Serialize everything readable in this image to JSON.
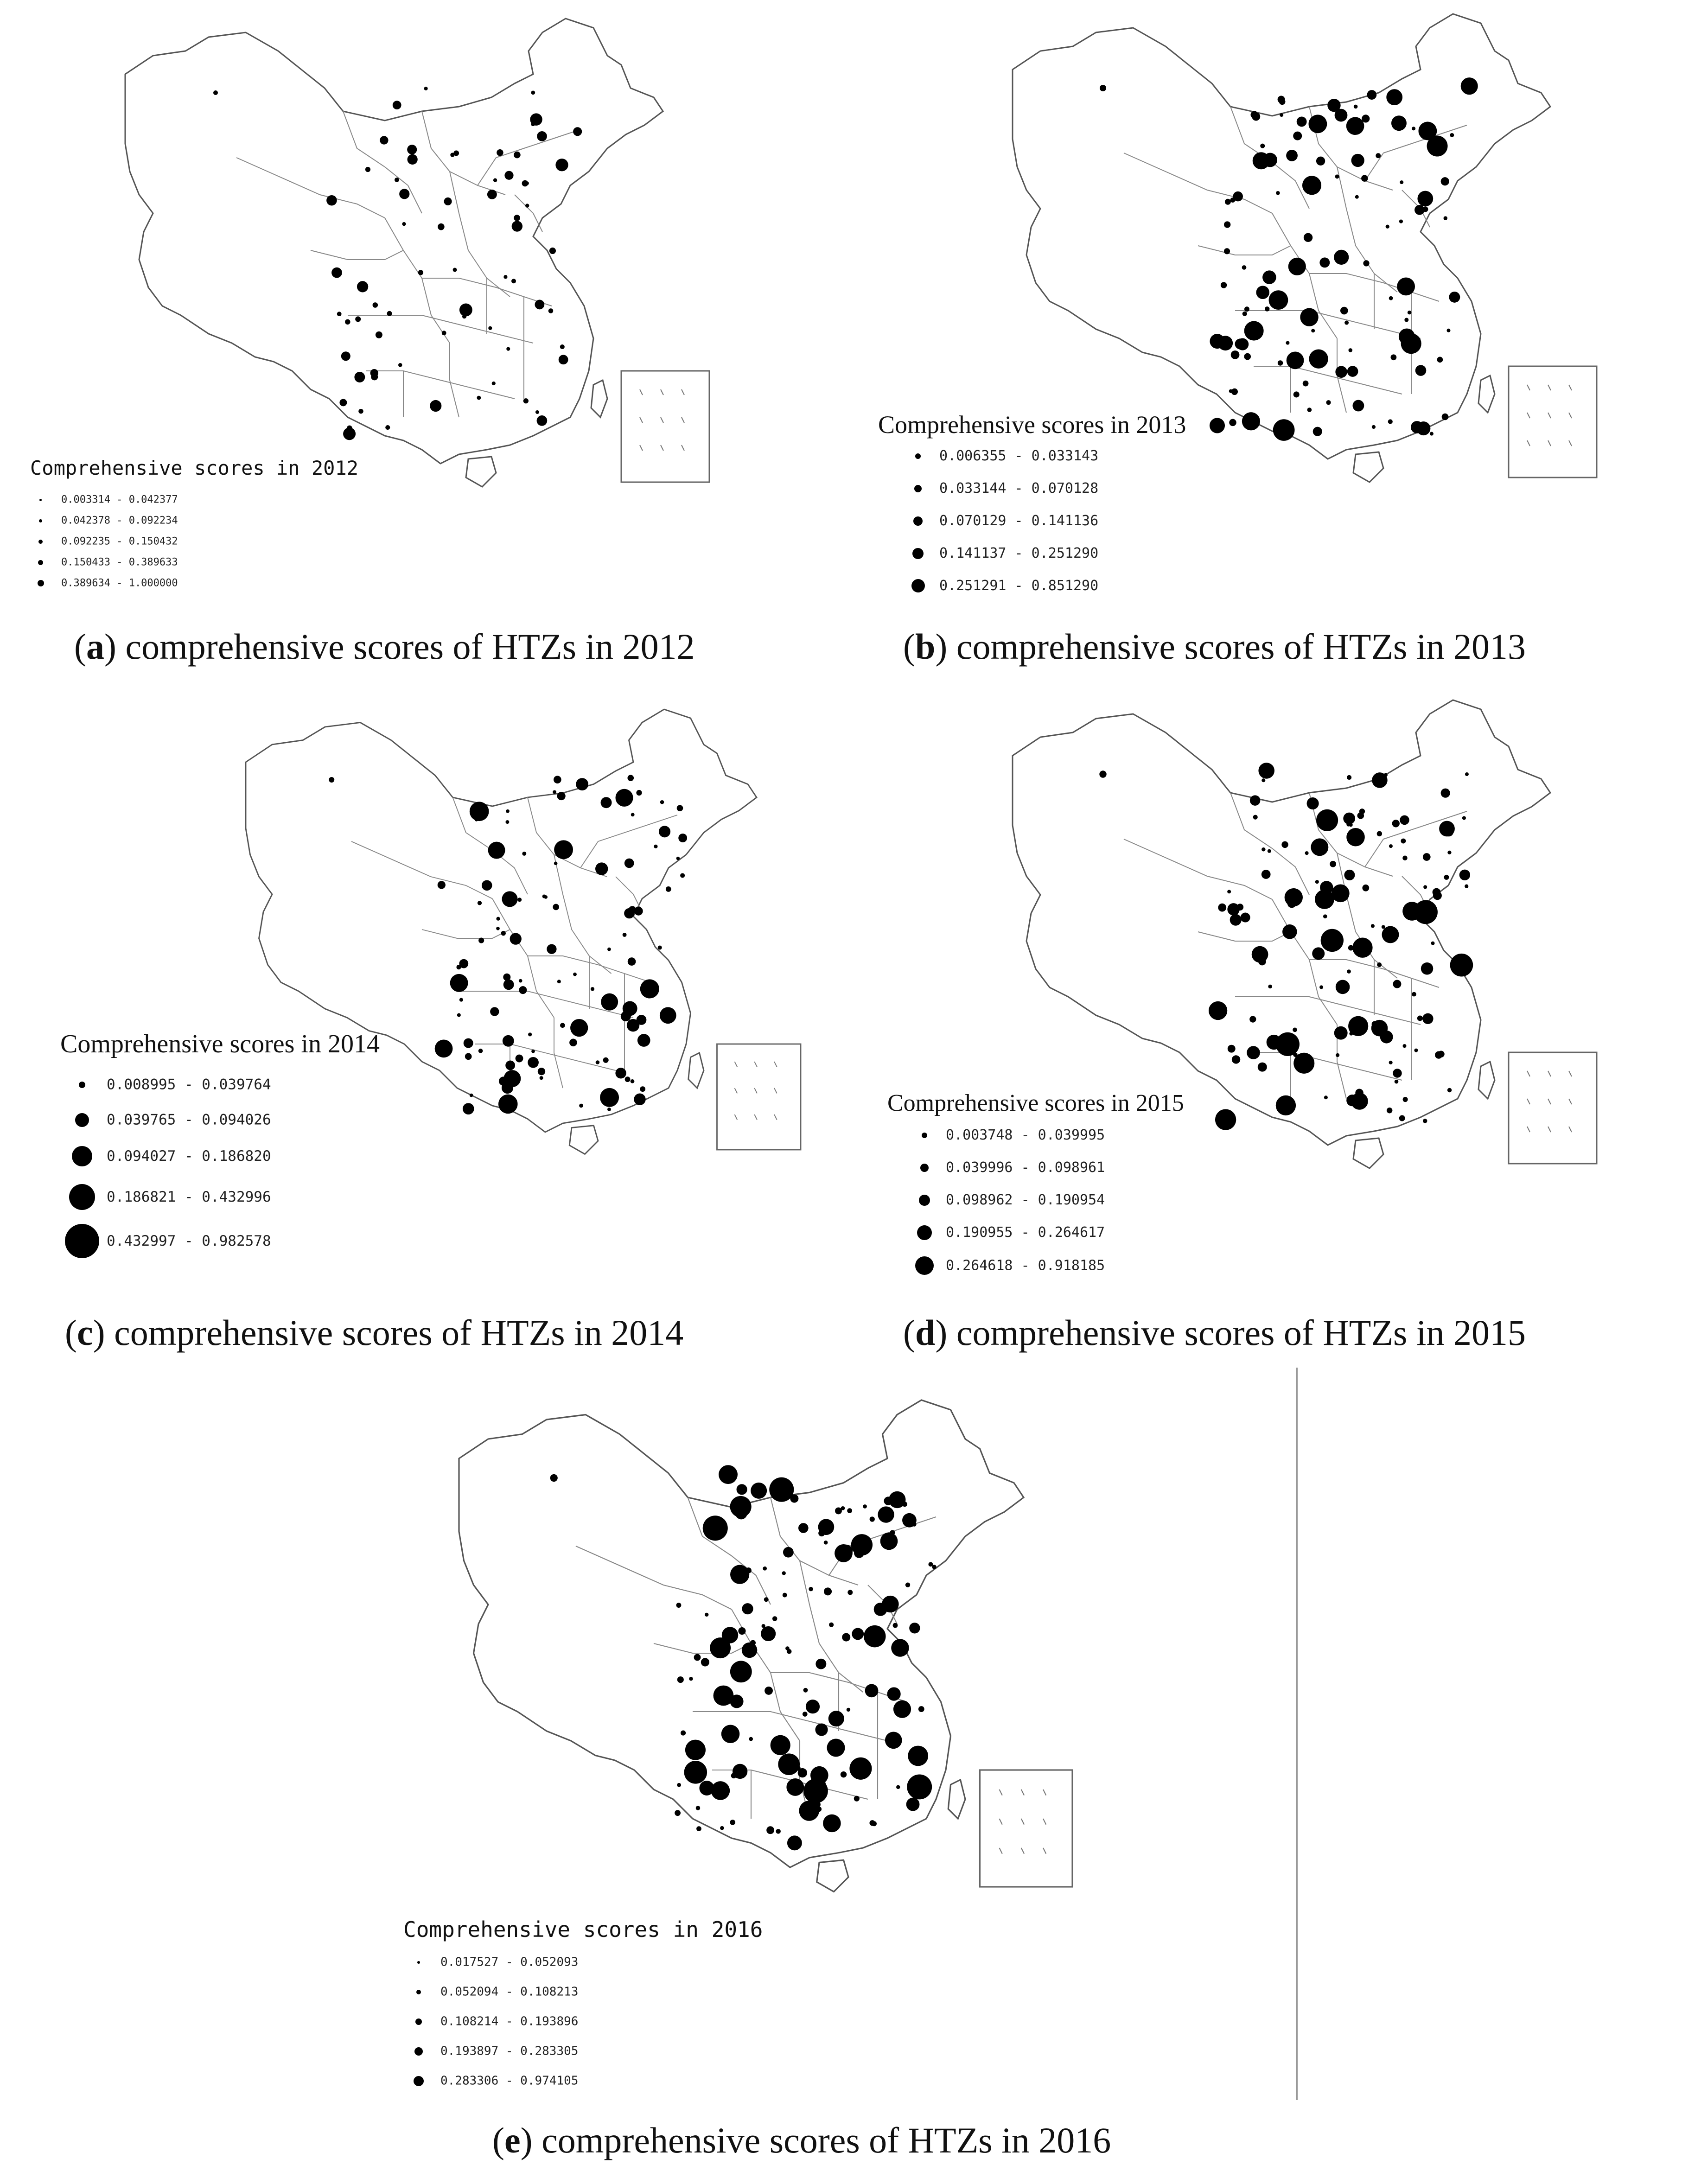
{
  "panels": [
    {
      "id": "a",
      "legend_title": "Comprehensive scores in 2012",
      "legend": [
        "0.003314 - 0.042377",
        "0.042378 - 0.092234",
        "0.092235 - 0.150432",
        "0.150433 - 0.389633",
        "0.389634 - 1.000000"
      ],
      "caption_letter": "a",
      "caption_text": "comprehensive scores of HTZs in 2012"
    },
    {
      "id": "b",
      "legend_title": "Comprehensive scores in 2013",
      "legend": [
        "0.006355 - 0.033143",
        "0.033144 - 0.070128",
        "0.070129 - 0.141136",
        "0.141137 - 0.251290",
        "0.251291 - 0.851290"
      ],
      "caption_letter": "b",
      "caption_text": "comprehensive scores of HTZs in 2013"
    },
    {
      "id": "c",
      "legend_title": "Comprehensive scores in 2014",
      "legend": [
        "0.008995 - 0.039764",
        "0.039765 - 0.094026",
        "0.094027 - 0.186820",
        "0.186821 - 0.432996",
        "0.432997 - 0.982578"
      ],
      "caption_letter": "c",
      "caption_text": "comprehensive scores of HTZs in 2014"
    },
    {
      "id": "d",
      "legend_title": "Comprehensive scores in 2015",
      "legend": [
        "0.003748 - 0.039995",
        "0.039996 - 0.098961",
        "0.098962 - 0.190954",
        "0.190955 - 0.264617",
        "0.264618 - 0.918185"
      ],
      "caption_letter": "d",
      "caption_text": "comprehensive scores of HTZs in 2015"
    },
    {
      "id": "e",
      "legend_title": "Comprehensive scores in 2016",
      "legend": [
        "0.017527 - 0.052093",
        "0.052094 - 0.108213",
        "0.108214 - 0.193896",
        "0.193897 - 0.283305",
        "0.283306 - 0.974105"
      ],
      "caption_letter": "e",
      "caption_text": "comprehensive scores of HTZs in 2016"
    }
  ]
}
